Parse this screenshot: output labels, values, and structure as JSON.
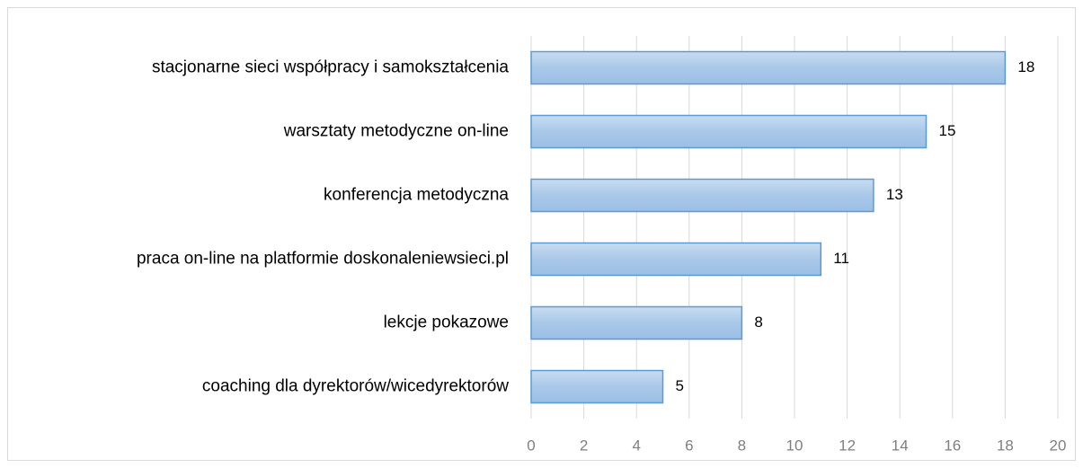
{
  "chart_data": {
    "type": "bar",
    "orientation": "horizontal",
    "categories": [
      "stacjonarne sieci współpracy i samokształcenia",
      "warsztaty metodyczne on-line",
      "konferencja metodyczna",
      "praca on-line na platformie doskonaleniewsieci.pl",
      "lekcje pokazowe",
      "coaching dla dyrektorów/wicedyrektorów"
    ],
    "values": [
      18,
      15,
      13,
      11,
      8,
      5
    ],
    "color": "#5b9bd5",
    "xlim": [
      0,
      20
    ],
    "xticks": [
      0,
      2,
      4,
      6,
      8,
      10,
      12,
      14,
      16,
      18,
      20
    ],
    "grid": true
  }
}
